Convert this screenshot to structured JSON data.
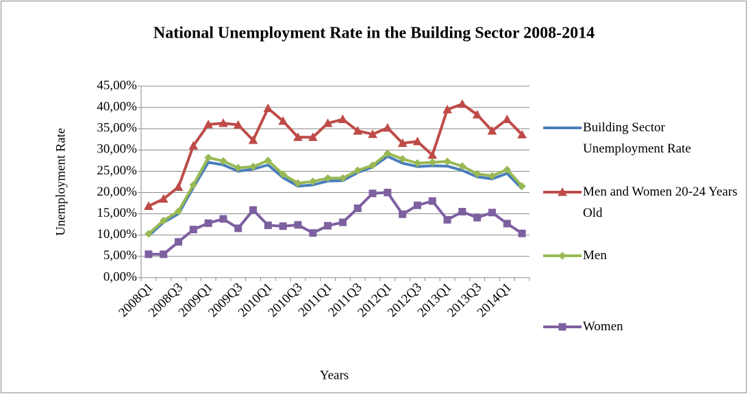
{
  "chart_data": {
    "type": "line",
    "title": "National Unemployment Rate in the Building Sector 2008-2014",
    "x_label": "Years",
    "y_label": "Unemployment Rate",
    "categories": [
      "2008Q1",
      null,
      "2008Q3",
      null,
      "2009Q1",
      null,
      "2009Q3",
      null,
      "2010Q1",
      null,
      "2010Q3",
      null,
      "2011Q1",
      null,
      "2011Q3",
      null,
      "2012Q1",
      null,
      "2012Q3",
      null,
      "2013Q1",
      null,
      "2013Q3",
      null,
      "2014Q1",
      null
    ],
    "series": [
      {
        "name": "Building Sector Unemployment Rate",
        "color": "#4a7ebb",
        "marker": "none",
        "values": [
          9.8,
          13,
          15,
          21.2,
          27.1,
          26.5,
          25,
          25.5,
          26.5,
          23.5,
          21.5,
          21.8,
          22.7,
          22.8,
          24.7,
          26,
          28.5,
          26.9,
          26.1,
          26.3,
          26.2,
          25.2,
          23.7,
          23.2,
          24.5,
          20.9
        ]
      },
      {
        "name": "Men and Women 20-24 Years Old",
        "color": "#be4b48",
        "marker": "triangle",
        "values": [
          16.8,
          18.5,
          21.3,
          31,
          36,
          36.3,
          35.9,
          32.3,
          39.8,
          36.8,
          33,
          33,
          36.3,
          37.2,
          34.5,
          33.7,
          35.2,
          31.6,
          32,
          28.8,
          39.5,
          40.8,
          38.3,
          34.5,
          37.2,
          33.6
        ]
      },
      {
        "name": "Men",
        "color": "#98b954",
        "marker": "diamond",
        "values": [
          10.3,
          13.4,
          15.6,
          21.8,
          28.2,
          27.4,
          25.8,
          26.1,
          27.5,
          24.3,
          22.2,
          22.6,
          23.4,
          23.4,
          25.2,
          26.4,
          29.2,
          27.9,
          26.9,
          27.1,
          27.3,
          26.2,
          24.4,
          23.9,
          25.4,
          21.5
        ]
      },
      {
        "name": "Women",
        "color": "#7d60a0",
        "marker": "square",
        "values": [
          5.5,
          5.5,
          8.4,
          11.3,
          12.8,
          13.8,
          11.6,
          15.9,
          12.3,
          12.1,
          12.4,
          10.5,
          12.2,
          13,
          16.3,
          19.8,
          20,
          14.9,
          17,
          18,
          13.6,
          15.5,
          14.1,
          15.3,
          12.7,
          10.4
        ]
      }
    ],
    "ylim": [
      0,
      45
    ],
    "yticks": [
      {
        "value": 0,
        "label": "0,00%"
      },
      {
        "value": 5,
        "label": "5,00%"
      },
      {
        "value": 10,
        "label": "10,00%"
      },
      {
        "value": 15,
        "label": "15,00%"
      },
      {
        "value": 20,
        "label": "20,00%"
      },
      {
        "value": 25,
        "label": "25,00%"
      },
      {
        "value": 30,
        "label": "30,00%"
      },
      {
        "value": 35,
        "label": "35,00%"
      },
      {
        "value": 40,
        "label": "40,00%"
      },
      {
        "value": 45,
        "label": "45,00%"
      }
    ],
    "grid": true,
    "legend": "right"
  }
}
